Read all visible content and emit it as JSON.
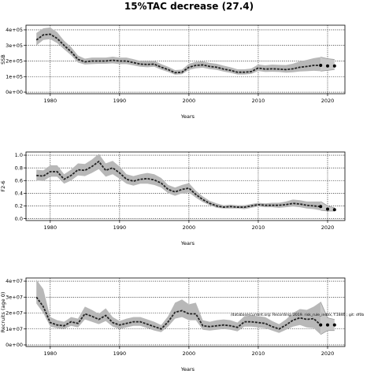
{
  "title": "15%TAC decrease (27.4)",
  "chart_data": [
    {
      "type": "line",
      "xlabel": "Years",
      "ylabel": "SSB",
      "xlim": [
        1976.5,
        2022.5
      ],
      "ylim": [
        -10000,
        430000
      ],
      "xticks": [
        1980,
        1990,
        2000,
        2010,
        2020
      ],
      "xtick_labels": [
        "1980",
        "1990",
        "2000",
        "2010",
        "2020"
      ],
      "yticks": [
        0,
        100000,
        200000,
        300000,
        400000
      ],
      "ytick_labels": [
        "0e+00",
        "1e+05",
        "2e+05",
        "3e+05",
        "4e+05"
      ],
      "grid": true,
      "x": [
        1978,
        1979,
        1980,
        1981,
        1982,
        1983,
        1984,
        1985,
        1986,
        1987,
        1988,
        1989,
        1990,
        1991,
        1992,
        1993,
        1994,
        1995,
        1996,
        1997,
        1998,
        1999,
        2000,
        2001,
        2002,
        2003,
        2004,
        2005,
        2006,
        2007,
        2008,
        2009,
        2010,
        2011,
        2012,
        2013,
        2014,
        2015,
        2016,
        2017,
        2018,
        2019
      ],
      "series": [
        {
          "values": [
            335000,
            368000,
            372000,
            345000,
            300000,
            260000,
            210000,
            195000,
            200000,
            200000,
            200000,
            205000,
            200000,
            200000,
            190000,
            180000,
            178000,
            180000,
            160000,
            145000,
            125000,
            128000,
            160000,
            172000,
            175000,
            165000,
            160000,
            148000,
            140000,
            128000,
            128000,
            132000,
            155000,
            148000,
            150000,
            148000,
            145000,
            150000,
            160000,
            165000,
            172000,
            172000
          ],
          "lower": [
            300000,
            335000,
            340000,
            315000,
            275000,
            237000,
            190000,
            178000,
            180000,
            182000,
            182000,
            185000,
            180000,
            180000,
            172000,
            163000,
            160000,
            163000,
            144000,
            130000,
            112000,
            115000,
            143000,
            153000,
            157000,
            148000,
            143000,
            132000,
            124000,
            113000,
            113000,
            117000,
            136000,
            130000,
            131000,
            130000,
            125000,
            128000,
            133000,
            135000,
            137000,
            135000
          ],
          "upper": [
            380000,
            410000,
            415000,
            385000,
            330000,
            290000,
            235000,
            215000,
            222000,
            222000,
            222000,
            228000,
            222000,
            222000,
            212000,
            200000,
            200000,
            202000,
            180000,
            163000,
            142000,
            145000,
            182000,
            195000,
            198000,
            188000,
            182000,
            170000,
            160000,
            147000,
            147000,
            152000,
            178000,
            172000,
            177000,
            175000,
            174000,
            183000,
            198000,
            207000,
            218000,
            225000
          ]
        }
      ],
      "projection": {
        "x": [
          2019,
          2020,
          2021
        ],
        "values": [
          172000,
          168000,
          168000
        ],
        "lower": [
          135000,
          140000,
          145000
        ],
        "upper": [
          225000,
          215000,
          210000
        ]
      }
    },
    {
      "type": "line",
      "xlabel": "Years",
      "ylabel": "F2-6",
      "xlim": [
        1976.5,
        2022.5
      ],
      "ylim": [
        -0.03,
        1.05
      ],
      "xticks": [
        1980,
        1990,
        2000,
        2010,
        2020
      ],
      "xtick_labels": [
        "1980",
        "1990",
        "2000",
        "2010",
        "2020"
      ],
      "yticks": [
        0.0,
        0.2,
        0.4,
        0.6,
        0.8,
        1.0
      ],
      "ytick_labels": [
        "0.0",
        "0.2",
        "0.4",
        "0.6",
        "0.8",
        "1.0"
      ],
      "grid": true,
      "x": [
        1978,
        1979,
        1980,
        1981,
        1982,
        1983,
        1984,
        1985,
        1986,
        1987,
        1988,
        1989,
        1990,
        1991,
        1992,
        1993,
        1994,
        1995,
        1996,
        1997,
        1998,
        1999,
        2000,
        2001,
        2002,
        2003,
        2004,
        2005,
        2006,
        2007,
        2008,
        2009,
        2010,
        2011,
        2012,
        2013,
        2014,
        2015,
        2016,
        2017,
        2018,
        2019
      ],
      "series": [
        {
          "values": [
            0.68,
            0.67,
            0.74,
            0.74,
            0.62,
            0.68,
            0.77,
            0.76,
            0.82,
            0.9,
            0.76,
            0.8,
            0.72,
            0.62,
            0.59,
            0.62,
            0.63,
            0.61,
            0.56,
            0.46,
            0.42,
            0.46,
            0.48,
            0.38,
            0.3,
            0.24,
            0.2,
            0.18,
            0.19,
            0.18,
            0.18,
            0.2,
            0.22,
            0.21,
            0.21,
            0.21,
            0.22,
            0.24,
            0.23,
            0.21,
            0.2,
            0.19
          ],
          "lower": [
            0.6,
            0.59,
            0.66,
            0.66,
            0.55,
            0.6,
            0.68,
            0.67,
            0.72,
            0.78,
            0.66,
            0.7,
            0.63,
            0.55,
            0.52,
            0.55,
            0.55,
            0.53,
            0.49,
            0.4,
            0.36,
            0.4,
            0.41,
            0.33,
            0.26,
            0.21,
            0.17,
            0.16,
            0.16,
            0.16,
            0.15,
            0.17,
            0.19,
            0.18,
            0.18,
            0.17,
            0.18,
            0.19,
            0.18,
            0.16,
            0.15,
            0.13
          ],
          "upper": [
            0.77,
            0.76,
            0.84,
            0.84,
            0.7,
            0.77,
            0.87,
            0.86,
            0.93,
            1.02,
            0.87,
            0.91,
            0.82,
            0.7,
            0.67,
            0.7,
            0.72,
            0.7,
            0.64,
            0.53,
            0.49,
            0.53,
            0.56,
            0.44,
            0.35,
            0.28,
            0.24,
            0.21,
            0.22,
            0.21,
            0.21,
            0.23,
            0.25,
            0.24,
            0.25,
            0.25,
            0.27,
            0.3,
            0.29,
            0.27,
            0.27,
            0.27
          ]
        }
      ],
      "projection": {
        "x": [
          2019,
          2020,
          2021
        ],
        "values": [
          0.19,
          0.15,
          0.14
        ],
        "lower": [
          0.13,
          0.12,
          0.12
        ],
        "upper": [
          0.27,
          0.2,
          0.17
        ]
      }
    },
    {
      "type": "line",
      "xlabel": "Years",
      "ylabel": "Recruits (age 0)",
      "xlim": [
        1976.5,
        2022.5
      ],
      "ylim": [
        -1000000,
        42000000
      ],
      "xticks": [
        1980,
        1990,
        2000,
        2010,
        2020
      ],
      "xtick_labels": [
        "1980",
        "1990",
        "2000",
        "2010",
        "2020"
      ],
      "yticks": [
        0,
        10000000,
        20000000,
        30000000,
        40000000
      ],
      "ytick_labels": [
        "0e+00",
        "1e+07",
        "2e+07",
        "3e+07",
        "4e+07"
      ],
      "grid": true,
      "annotation": "/database/current.org: Recording: 2019. risk_rule_index, f:1846 ; git: df0b",
      "x": [
        1978,
        1979,
        1980,
        1981,
        1982,
        1983,
        1984,
        1985,
        1986,
        1987,
        1988,
        1989,
        1990,
        1991,
        1992,
        1993,
        1994,
        1995,
        1996,
        1997,
        1998,
        1999,
        2000,
        2001,
        2002,
        2003,
        2004,
        2005,
        2006,
        2007,
        2008,
        2009,
        2010,
        2011,
        2012,
        2013,
        2014,
        2015,
        2016,
        2017,
        2018,
        2019
      ],
      "series": [
        {
          "values": [
            30000000,
            24000000,
            14000000,
            12500000,
            12000000,
            14500000,
            13500000,
            19500000,
            18000000,
            16000000,
            18500000,
            14000000,
            12500000,
            13500000,
            14500000,
            14500000,
            13000000,
            11500000,
            10000000,
            14500000,
            20500000,
            21500000,
            19500000,
            19500000,
            12000000,
            11500000,
            12000000,
            12500000,
            12000000,
            11000000,
            14500000,
            14500000,
            14000000,
            13500000,
            11500000,
            10000000,
            12500000,
            15500000,
            17000000,
            16000000,
            16500000,
            12500000
          ],
          "lower": [
            26000000,
            20000000,
            11500000,
            10500000,
            10000000,
            12000000,
            11000000,
            16000000,
            14500000,
            13000000,
            15000000,
            11500000,
            10000000,
            11000000,
            12000000,
            12000000,
            10500000,
            9000000,
            8000000,
            11500000,
            16500000,
            17500000,
            15500000,
            15500000,
            9500000,
            9000000,
            9500000,
            10000000,
            9500000,
            8500000,
            11500000,
            11500000,
            11000000,
            10500000,
            9000000,
            7500000,
            9500000,
            11500000,
            12500000,
            11000000,
            10500000,
            6500000
          ],
          "upper": [
            41000000,
            35000000,
            17500000,
            15500000,
            14500000,
            17500000,
            16500000,
            24000000,
            22000000,
            19500000,
            23000000,
            17500000,
            15000000,
            16500000,
            17500000,
            17500000,
            16000000,
            14500000,
            12500000,
            18000000,
            26500000,
            28500000,
            25500000,
            26500000,
            15500000,
            14500000,
            15500000,
            16000000,
            15500000,
            14000000,
            18000000,
            18500000,
            18000000,
            17500000,
            15000000,
            13000000,
            16000000,
            20000000,
            22500000,
            22000000,
            24000000,
            27000000
          ]
        }
      ],
      "projection": {
        "x": [
          2019,
          2020,
          2021
        ],
        "values": [
          12500000,
          12500000,
          12500000
        ],
        "lower": [
          6500000,
          9000000,
          9000000
        ],
        "upper": [
          27000000,
          17000000,
          16000000
        ]
      }
    }
  ]
}
